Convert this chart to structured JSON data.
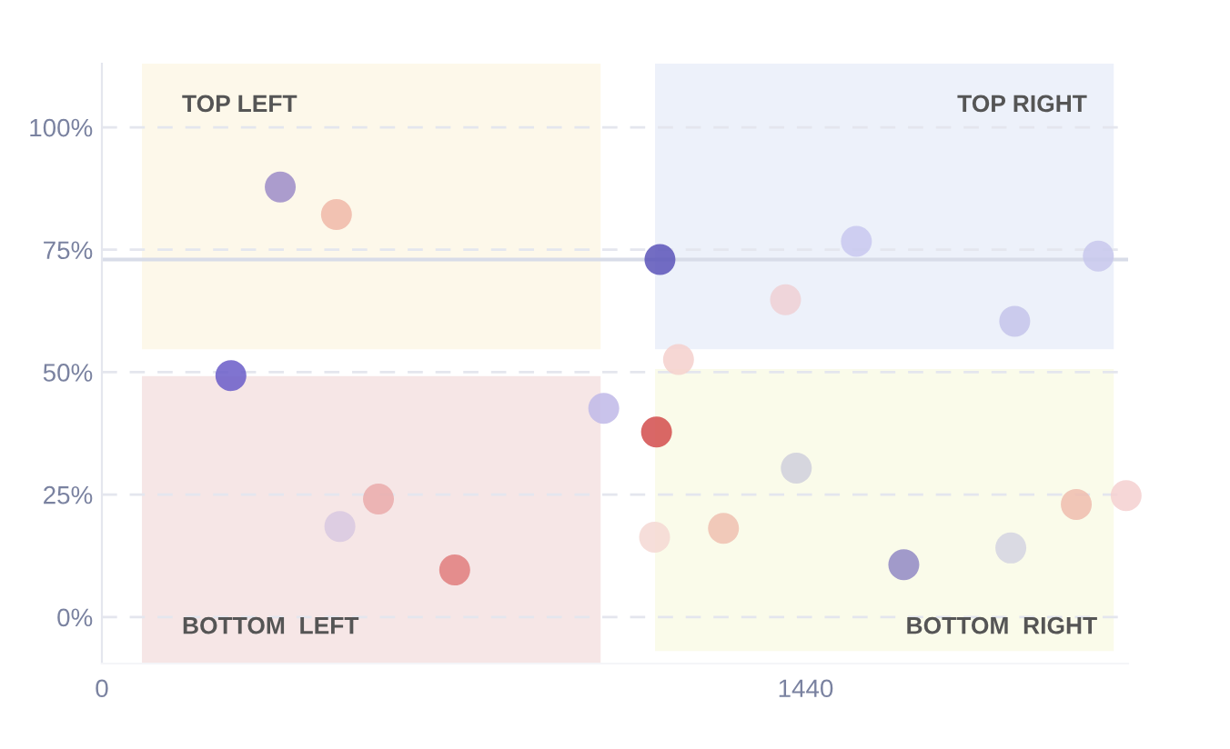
{
  "chart_data": {
    "type": "scatter",
    "x": [
      264,
      365,
      480,
      487,
      566,
      722,
      1027,
      1135,
      1142,
      1131,
      1180,
      1272,
      1399,
      1421,
      1544,
      1641,
      1860,
      1868,
      1994,
      2039,
      2096
    ],
    "values": [
      49.3,
      87.8,
      82.2,
      18.5,
      24.1,
      9.6,
      42.6,
      37.8,
      73,
      16.3,
      52.6,
      18.1,
      64.8,
      30.4,
      76.7,
      10.7,
      14.1,
      60.4,
      23,
      73.7,
      24.8
    ],
    "colors": [
      "#6a5cc8",
      "#9c8cc8",
      "#f0b8a8",
      "#d8c8e0",
      "#eaaaaa",
      "#e07c7c",
      "#c0b8e8",
      "#d24c4c",
      "#5a54b8",
      "#f5d8d4",
      "#f5d0cc",
      "#eebfb0",
      "#eed0d4",
      "#cfcfdc",
      "#c8c8ee",
      "#9088c4",
      "#d4d4e2",
      "#c4c4ea",
      "#eebcae",
      "#c8c8ec",
      "#f5d0d0"
    ],
    "xlim": [
      0,
      2100
    ],
    "xticks": [
      0,
      1440
    ],
    "ylim": [
      -9.5,
      113
    ],
    "yticks": [
      {
        "value": 0,
        "label": "0%"
      },
      {
        "value": 25,
        "label": "25%"
      },
      {
        "value": 50,
        "label": "50%"
      },
      {
        "value": 75,
        "label": "75%"
      },
      {
        "value": 100,
        "label": "100%"
      }
    ],
    "grid": "y",
    "marker": "circle",
    "ref_lines": [
      {
        "axis": "y",
        "value": 73,
        "color": "#d8dce8"
      }
    ],
    "annotations": [
      "TOP LEFT",
      "TOP RIGHT",
      "BOTTOM  LEFT",
      "BOTTOM  RIGHT"
    ]
  }
}
